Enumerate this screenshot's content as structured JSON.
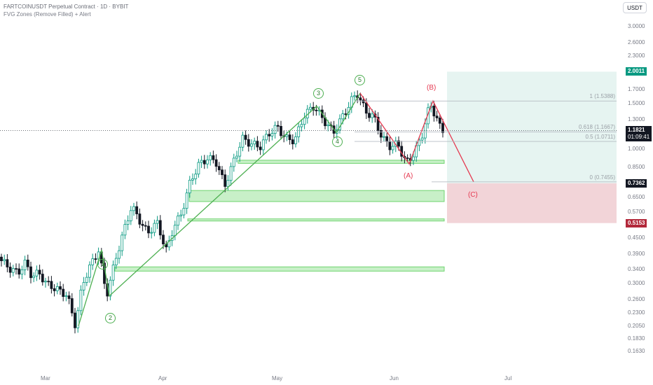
{
  "header": {
    "title": "FARTCOINUSDT Perpetual Contract · 1D · BYBIT",
    "indicator": "FVG Zones (Remove Filled) + Alert"
  },
  "currency_button": "USDT",
  "price_axis": {
    "ticks": [
      "3.0000",
      "2.6000",
      "2.3000",
      "2.0011",
      "1.7000",
      "1.5000",
      "1.3000",
      "1.1821",
      "1.0000",
      "0.8500",
      "0.7362",
      "0.6500",
      "0.5700",
      "0.5153",
      "0.4500",
      "0.3900",
      "0.3400",
      "0.3000",
      "0.2600",
      "0.2300",
      "0.2050",
      "0.1830",
      "0.1630"
    ],
    "scale": "log"
  },
  "time_axis": {
    "labels": [
      "Mar",
      "Apr",
      "May",
      "Jun",
      "Jul"
    ]
  },
  "badges": {
    "target": {
      "value": "2.0011",
      "color": "#089981"
    },
    "current": {
      "value": "1.1821",
      "countdown": "01:09:41",
      "color": "#131722"
    },
    "entry": {
      "value": "0.7362",
      "color": "#131722"
    },
    "stop": {
      "value": "0.5153",
      "color": "#b2283a"
    }
  },
  "fib_levels": [
    {
      "label": "1 (1.5388)",
      "price": 1.5388
    },
    {
      "label": "0.618 (1.1667)",
      "price": 1.1667
    },
    {
      "label": "0.5 (1.0711)",
      "price": 1.0711
    },
    {
      "label": "0 (0.7455)",
      "price": 0.7455
    }
  ],
  "waves": {
    "impulse": [
      {
        "label": "1",
        "price": 0.405
      },
      {
        "label": "2",
        "price": 0.268
      },
      {
        "label": "3",
        "price": 1.47
      },
      {
        "label": "4",
        "price": 1.16
      },
      {
        "label": "5",
        "price": 1.65
      }
    ],
    "corrective": [
      {
        "label": "(A)",
        "price": 0.875
      },
      {
        "label": "(B)",
        "price": 1.54
      },
      {
        "label": "(C)",
        "price": 0.7455
      }
    ]
  },
  "fvg_zones": [
    {
      "low": 0.88,
      "high": 0.905
    },
    {
      "low": 0.625,
      "high": 0.69
    },
    {
      "low": 0.525,
      "high": 0.535
    },
    {
      "low": 0.335,
      "high": 0.348
    }
  ],
  "position": {
    "target": 2.0011,
    "entry": 0.7362,
    "stop": 0.5153
  },
  "colors": {
    "up": "#089981",
    "down": "#131722",
    "impulse_line": "#4caf50",
    "corrective_line": "#e53950",
    "profit_zone": "#e6f4f1",
    "loss_zone": "#f2d4d8",
    "fvg_fill": "#c8f0c8",
    "fvg_border": "#6fd46f"
  }
}
